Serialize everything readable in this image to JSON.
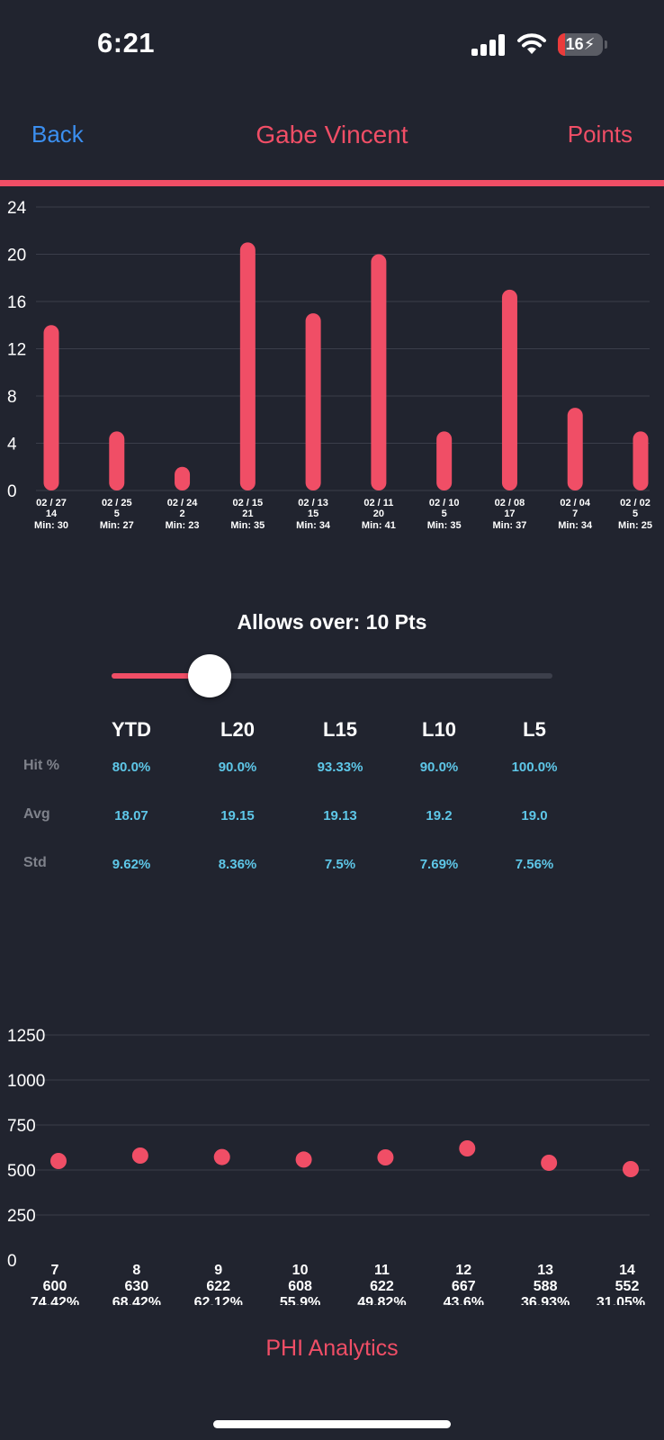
{
  "status_bar": {
    "time": "6:21",
    "battery": "16",
    "battery_level": 0.16,
    "icons": [
      "cellular-signal-icon",
      "wifi-icon",
      "battery-charging-icon"
    ]
  },
  "nav": {
    "back_label": "Back",
    "title": "Gabe Vincent",
    "right_label": "Points"
  },
  "colors": {
    "background": "#21242f",
    "accent": "#f04e66",
    "link": "#3b8ff0",
    "stat_value": "#5ec7e8",
    "stat_label": "#7f828b",
    "grid": "#3b3e4a"
  },
  "chart_data": [
    {
      "type": "bar",
      "title": "",
      "xlabel": "",
      "ylabel": "",
      "ylim": [
        0,
        24
      ],
      "yticks": [
        "0",
        "4",
        "8",
        "12",
        "16",
        "20",
        "24"
      ],
      "grid": true,
      "categories": [
        "02 / 27",
        "02 / 25",
        "02 / 24",
        "02 / 15",
        "02 / 13",
        "02 / 11",
        "02 / 10",
        "02 / 08",
        "02 / 04",
        "02 / 02"
      ],
      "values": [
        14,
        5,
        2,
        21,
        15,
        20,
        5,
        17,
        7,
        5
      ],
      "minutes": [
        "Min: 30",
        "Min: 27",
        "Min: 23",
        "Min: 35",
        "Min: 34",
        "Min: 41",
        "Min: 35",
        "Min: 37",
        "Min: 34",
        "Min: 25"
      ]
    },
    {
      "type": "scatter",
      "title": "",
      "xlabel": "",
      "ylabel": "",
      "ylim": [
        0,
        1250
      ],
      "yticks": [
        "0",
        "250",
        "500",
        "750",
        "1000",
        "1250"
      ],
      "grid": true,
      "categories": [
        "7",
        "8",
        "9",
        "10",
        "11",
        "12",
        "13",
        "14"
      ],
      "totals": [
        "600",
        "630",
        "622",
        "608",
        "622",
        "667",
        "588",
        "552"
      ],
      "percents": [
        "74.42%",
        "68.42%",
        "62.12%",
        "55.9%",
        "49.82%",
        "43.6%",
        "36.93%",
        "31.05%"
      ],
      "values": [
        550,
        580,
        572,
        558,
        570,
        620,
        540,
        505
      ]
    }
  ],
  "threshold": {
    "label": "Allows over: 10 Pts",
    "value": 10,
    "min": 0,
    "max": 45
  },
  "stats": {
    "columns": [
      "YTD",
      "L20",
      "L15",
      "L10",
      "L5"
    ],
    "rows": [
      {
        "label": "Hit %",
        "values": [
          "80.0%",
          "90.0%",
          "93.33%",
          "90.0%",
          "100.0%"
        ]
      },
      {
        "label": "Avg",
        "values": [
          "18.07",
          "19.15",
          "19.13",
          "19.2",
          "19.0"
        ]
      },
      {
        "label": "Std",
        "values": [
          "9.62%",
          "8.36%",
          "7.5%",
          "7.69%",
          "7.56%"
        ]
      }
    ]
  },
  "footer": {
    "brand": "PHI Analytics"
  }
}
